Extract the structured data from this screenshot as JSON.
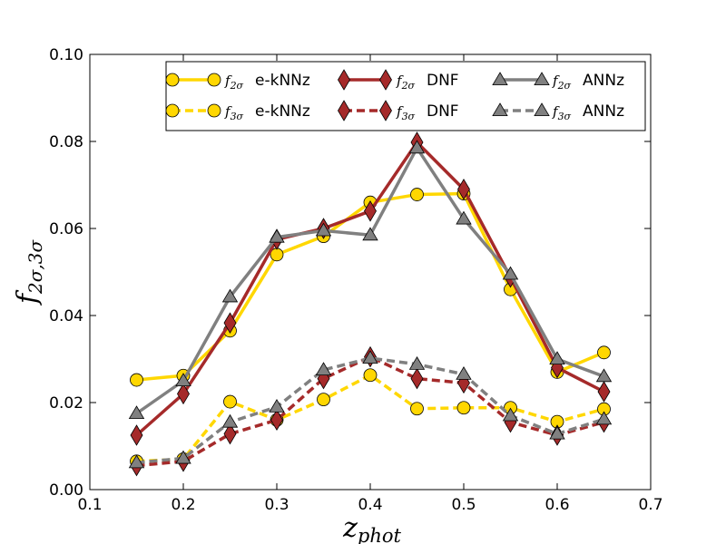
{
  "chart_data": {
    "type": "line",
    "title": "",
    "xlabel": "z",
    "xlabel_sub": "phot",
    "ylabel": "f",
    "ylabel_sub": "2σ,3σ",
    "xlim": [
      0.1,
      0.7
    ],
    "ylim": [
      0.0,
      0.1
    ],
    "xticks": [
      "0.1",
      "0.2",
      "0.3",
      "0.4",
      "0.5",
      "0.6",
      "0.7"
    ],
    "yticks": [
      "0.00",
      "0.02",
      "0.04",
      "0.06",
      "0.08",
      "0.10"
    ],
    "grid": false,
    "legend_position": "top-right",
    "x": [
      0.15,
      0.2,
      0.25,
      0.3,
      0.35,
      0.4,
      0.45,
      0.5,
      0.55,
      0.6,
      0.65
    ],
    "series": [
      {
        "name": "e-kNNz",
        "symbol": "f",
        "sub": "2σ",
        "color": "#FFD700",
        "marker": "circle",
        "dashed": false,
        "values": [
          0.0252,
          0.0262,
          0.0365,
          0.054,
          0.0582,
          0.066,
          0.0678,
          0.068,
          0.046,
          0.027,
          0.0315
        ]
      },
      {
        "name": "e-kNNz",
        "symbol": "f",
        "sub": "3σ",
        "color": "#FFD700",
        "marker": "circle",
        "dashed": true,
        "values": [
          0.0065,
          0.007,
          0.0202,
          0.016,
          0.0207,
          0.0263,
          0.0186,
          0.0188,
          0.0188,
          0.0156,
          0.0185
        ]
      },
      {
        "name": "DNF",
        "symbol": "f",
        "sub": "2σ",
        "color": "#A52A2A",
        "marker": "diamond",
        "dashed": false,
        "values": [
          0.0125,
          0.022,
          0.0383,
          0.0575,
          0.06,
          0.064,
          0.0798,
          0.069,
          0.0488,
          0.028,
          0.0225
        ]
      },
      {
        "name": "DNF",
        "symbol": "f",
        "sub": "3σ",
        "color": "#A52A2A",
        "marker": "diamond",
        "dashed": true,
        "values": [
          0.0055,
          0.0065,
          0.0128,
          0.016,
          0.0255,
          0.0305,
          0.0255,
          0.0245,
          0.0155,
          0.0125,
          0.0155
        ]
      },
      {
        "name": "ANNz",
        "symbol": "f",
        "sub": "2σ",
        "color": "#808080",
        "marker": "triangle",
        "dashed": false,
        "values": [
          0.0175,
          0.025,
          0.0443,
          0.058,
          0.0595,
          0.0585,
          0.0785,
          0.0622,
          0.0495,
          0.03,
          0.026
        ]
      },
      {
        "name": "ANNz",
        "symbol": "f",
        "sub": "3σ",
        "color": "#808080",
        "marker": "triangle",
        "dashed": true,
        "values": [
          0.0062,
          0.0072,
          0.0155,
          0.019,
          0.0275,
          0.0302,
          0.0288,
          0.0265,
          0.017,
          0.0128,
          0.0162
        ]
      }
    ]
  }
}
